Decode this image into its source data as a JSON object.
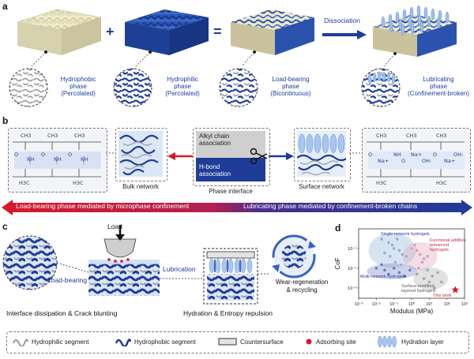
{
  "panel_labels": {
    "a": "a",
    "b": "b",
    "c": "c",
    "d": "d"
  },
  "panel_a": {
    "plus": "+",
    "equals": "=",
    "dissociation": "Dissociation",
    "items": [
      {
        "title": "Hydrophobic\nphase\n(Percolated)"
      },
      {
        "title": "Hydrophilic\nphase\n(Percolated)"
      },
      {
        "title": "Load-bearing\nphase\n(Bicontinuous)"
      },
      {
        "title": "Lubricating\nphase\n(Confinement-broken)"
      }
    ]
  },
  "panel_b": {
    "bulk_network": "Bulk network",
    "phase_interface": "Phase interface",
    "surface_network": "Surface network",
    "alkyl": "Alkyl chain\nassociation",
    "hbond": "H-bond\nassociation",
    "arrow_left": "Load-bearing phase mediated by microphase confinement",
    "arrow_right": "Lubricating phase mediated by confinement-broken chains",
    "chem_left": [
      "CH3",
      "CH3",
      "CH3",
      "O",
      "NH",
      "O",
      "NH",
      "O",
      "NH",
      "H3C",
      "H3C"
    ],
    "chem_right": [
      "CH3",
      "CH3",
      "CH3",
      "O",
      "Na+",
      "NH",
      "O",
      "Na+",
      "OH-",
      "O",
      "Na+",
      "OH-",
      "H3C",
      "H3C"
    ]
  },
  "panel_c": {
    "load": "Load",
    "lubrication": "Lubrication",
    "load_bearing": "Load-bearing",
    "wear": "Wear-regeneration\n& recycling",
    "caption_left": "Interface dissipation & Crack blunting",
    "caption_right": "Hydration & Entropy repulsion"
  },
  "panel_d": {
    "chart_data": {
      "type": "scatter",
      "xlabel": "Modulus (MPa)",
      "ylabel": "CoF",
      "xscale": "log",
      "yscale": "log",
      "xlim": [
        0.001,
        1000
      ],
      "ylim": [
        0.0003,
        1
      ],
      "xticks": [
        "10⁻³",
        "10⁻²",
        "10⁻¹",
        "10⁰",
        "10¹",
        "10²",
        "10³"
      ],
      "yticks": [
        "10⁻¹",
        "10⁻²",
        "10⁻³"
      ],
      "series": [
        {
          "name": "Single-network hydrogels",
          "color": "#8fb0d8",
          "x": [
            0.02,
            0.05,
            0.08,
            0.1,
            0.15,
            0.2,
            0.3,
            0.5,
            0.03,
            0.06,
            0.12,
            0.25
          ],
          "y": [
            0.3,
            0.2,
            0.15,
            0.1,
            0.3,
            0.08,
            0.05,
            0.04,
            0.06,
            0.04,
            0.02,
            0.015
          ]
        },
        {
          "name": "Functional additive enhanced hydrogels",
          "color": "#d9a0b8",
          "x": [
            1,
            2,
            3,
            5,
            1.5,
            4,
            8,
            2.5
          ],
          "y": [
            0.1,
            0.08,
            0.05,
            0.03,
            0.15,
            0.02,
            0.04,
            0.01
          ]
        },
        {
          "name": "Multi-network hydrogels",
          "color": "#6f7fc0",
          "x": [
            0.01,
            0.03,
            0.05,
            0.1,
            0.2,
            0.4,
            0.8,
            0.02
          ],
          "y": [
            0.01,
            0.008,
            0.005,
            0.01,
            0.006,
            0.004,
            0.008,
            0.015
          ]
        },
        {
          "name": "Surface-modified layered hydrogels",
          "color": "#a8a8a8",
          "x": [
            2,
            5,
            10,
            20,
            8,
            15,
            30,
            50
          ],
          "y": [
            0.005,
            0.003,
            0.002,
            0.001,
            0.008,
            0.004,
            0.006,
            0.002
          ]
        },
        {
          "name": "This work",
          "color": "#e0102a",
          "marker": "star",
          "x": [
            300
          ],
          "y": [
            0.0008
          ]
        }
      ]
    }
  },
  "legend": [
    {
      "label": "Hydrophilic segment",
      "icon": "gray-wave-icon"
    },
    {
      "label": "Hydrophobic segment",
      "icon": "blue-wave-icon"
    },
    {
      "label": "Countersurface",
      "icon": "rectangle-icon"
    },
    {
      "label": "Adsorbing site",
      "icon": "red-dot-icon"
    },
    {
      "label": "Hydration layer",
      "icon": "ellipse-icon"
    }
  ],
  "colors": {
    "blue": "#1f3c98",
    "red": "#d7192b",
    "cream": "#efe9c8"
  }
}
